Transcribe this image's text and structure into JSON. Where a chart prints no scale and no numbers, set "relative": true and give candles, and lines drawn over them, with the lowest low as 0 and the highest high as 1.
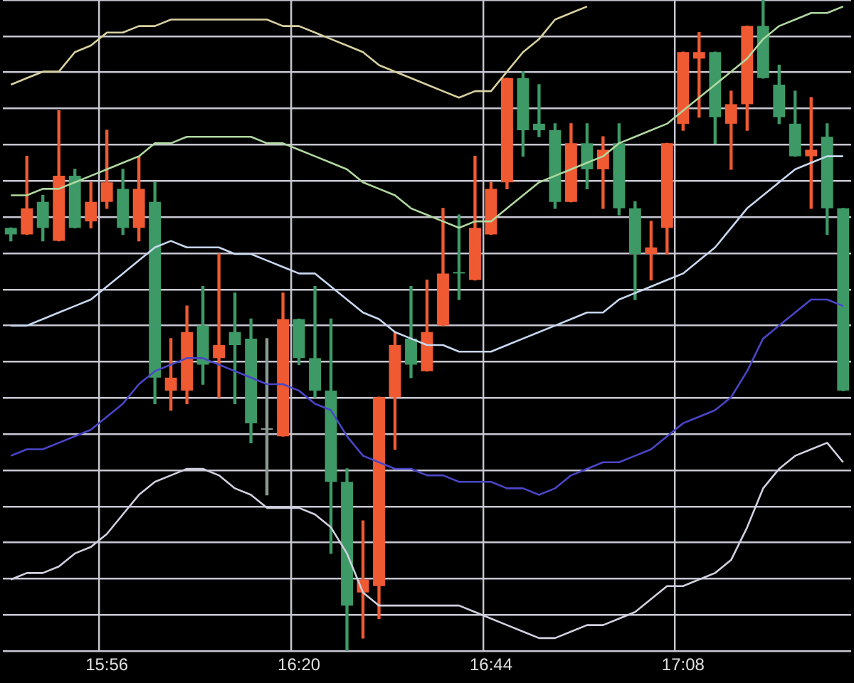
{
  "chart_data": {
    "type": "candlestick",
    "relative": true,
    "grid": true,
    "categories": [
      null,
      null,
      null,
      null,
      null,
      null,
      "15:56",
      null,
      null,
      null,
      null,
      null,
      null,
      null,
      null,
      null,
      null,
      null,
      "16:20",
      null,
      null,
      null,
      null,
      null,
      null,
      null,
      null,
      null,
      null,
      null,
      "16:44",
      null,
      null,
      null,
      null,
      null,
      null,
      null,
      null,
      null,
      null,
      null,
      "17:08",
      null,
      null,
      null,
      null,
      null,
      null,
      null,
      null,
      null,
      null
    ],
    "colors": [
      "#3d9a66",
      "#f05a32",
      "#3d9a66",
      "#f05a32",
      "#3d9a66",
      "#f05a32",
      "#f05a32",
      "#3d9a66",
      "#f05a32",
      "#3d9a66",
      "#f05a32",
      "#f05a32",
      "#3d9a66",
      "#f05a32",
      "#3d9a66",
      "#3d9a66",
      "#8a9a90",
      "#f05a32",
      "#3d9a66",
      "#3d9a66",
      "#3d9a66",
      "#3d9a66",
      "#f05a32",
      "#f05a32",
      "#f05a32",
      "#3d9a66",
      "#f05a32",
      "#f05a32",
      "#3d9a66",
      "#f05a32",
      "#f05a32",
      "#f05a32",
      "#3d9a66",
      "#3d9a66",
      "#3d9a66",
      "#f05a32",
      "#3d9a66",
      "#f05a32",
      "#3d9a66",
      "#3d9a66",
      "#f05a32",
      "#f05a32",
      "#f05a32",
      "#f05a32",
      "#3d9a66",
      "#f05a32",
      "#f05a32",
      "#3d9a66",
      "#3d9a66",
      "#3d9a66",
      "#f05a32",
      "#3d9a66",
      "#3d9a66"
    ],
    "ohlc": [
      [
        0.65,
        0.65,
        0.63,
        0.64
      ],
      [
        0.64,
        0.76,
        0.64,
        0.68
      ],
      [
        0.69,
        0.7,
        0.63,
        0.65
      ],
      [
        0.63,
        0.83,
        0.63,
        0.73
      ],
      [
        0.73,
        0.74,
        0.65,
        0.65
      ],
      [
        0.66,
        0.72,
        0.65,
        0.69
      ],
      [
        0.69,
        0.8,
        0.68,
        0.72
      ],
      [
        0.71,
        0.74,
        0.64,
        0.65
      ],
      [
        0.65,
        0.76,
        0.63,
        0.71
      ],
      [
        0.69,
        0.72,
        0.38,
        0.42
      ],
      [
        0.4,
        0.48,
        0.37,
        0.42
      ],
      [
        0.4,
        0.53,
        0.38,
        0.49
      ],
      [
        0.5,
        0.56,
        0.41,
        0.44
      ],
      [
        0.45,
        0.61,
        0.39,
        0.47
      ],
      [
        0.49,
        0.55,
        0.38,
        0.47
      ],
      [
        0.48,
        0.51,
        0.32,
        0.35
      ],
      [
        0.34,
        0.48,
        0.24,
        0.34
      ],
      [
        0.33,
        0.55,
        0.33,
        0.51
      ],
      [
        0.51,
        0.51,
        0.44,
        0.45
      ],
      [
        0.45,
        0.56,
        0.39,
        0.4
      ],
      [
        0.4,
        0.51,
        0.15,
        0.26
      ],
      [
        0.26,
        0.28,
        0,
        0.07
      ],
      [
        0.09,
        0.2,
        0.02,
        0.11
      ],
      [
        0.1,
        0.39,
        0.05,
        0.39
      ],
      [
        0.39,
        0.49,
        0.31,
        0.47
      ],
      [
        0.48,
        0.56,
        0.42,
        0.44
      ],
      [
        0.43,
        0.57,
        0.43,
        0.49
      ],
      [
        0.5,
        0.68,
        0.5,
        0.58
      ],
      [
        0.58,
        0.67,
        0.54,
        0.58
      ],
      [
        0.57,
        0.76,
        0.57,
        0.65
      ],
      [
        0.64,
        0.72,
        0.64,
        0.71
      ],
      [
        0.72,
        0.88,
        0.71,
        0.88
      ],
      [
        0.88,
        0.89,
        0.76,
        0.8
      ],
      [
        0.81,
        0.87,
        0.79,
        0.8
      ],
      [
        0.8,
        0.81,
        0.68,
        0.69
      ],
      [
        0.69,
        0.81,
        0.69,
        0.78
      ],
      [
        0.78,
        0.81,
        0.71,
        0.74
      ],
      [
        0.74,
        0.79,
        0.68,
        0.77
      ],
      [
        0.78,
        0.81,
        0.67,
        0.68
      ],
      [
        0.68,
        0.69,
        0.54,
        0.61
      ],
      [
        0.61,
        0.66,
        0.57,
        0.62
      ],
      [
        0.65,
        0.78,
        0.61,
        0.78
      ],
      [
        0.81,
        0.92,
        0.8,
        0.92
      ],
      [
        0.91,
        0.95,
        0.82,
        0.92
      ],
      [
        0.92,
        0.92,
        0.78,
        0.82
      ],
      [
        0.81,
        0.86,
        0.74,
        0.84
      ],
      [
        0.84,
        0.96,
        0.8,
        0.96
      ],
      [
        0.96,
        1,
        0.88,
        0.88
      ],
      [
        0.87,
        0.9,
        0.81,
        0.82
      ],
      [
        0.81,
        0.86,
        0.76,
        0.76
      ],
      [
        0.76,
        0.85,
        0.68,
        0.77
      ],
      [
        0.79,
        0.81,
        0.64,
        0.68
      ],
      [
        0.68,
        0.68,
        0.4,
        0.4
      ]
    ],
    "series": [
      {
        "type": "line",
        "color": "#d8d0a0",
        "values": [
          0.87,
          0.88,
          0.89,
          0.89,
          0.92,
          0.93,
          0.95,
          0.95,
          0.96,
          0.96,
          0.97,
          0.97,
          0.97,
          0.97,
          0.97,
          0.97,
          0.97,
          0.96,
          0.96,
          0.95,
          0.94,
          0.93,
          0.92,
          0.9,
          0.89,
          0.88,
          0.87,
          0.86,
          0.85,
          0.86,
          0.86,
          0.89,
          0.92,
          0.94,
          0.97,
          0.98,
          0.99,
          null,
          null,
          null,
          null,
          null,
          null,
          null,
          null,
          null,
          null,
          null,
          null,
          null,
          null,
          null,
          null
        ]
      },
      {
        "type": "line",
        "color": "#b0d8a0",
        "values": [
          0.7,
          0.7,
          0.71,
          0.71,
          0.72,
          0.73,
          0.74,
          0.75,
          0.76,
          0.78,
          0.78,
          0.79,
          0.79,
          0.79,
          0.79,
          0.79,
          0.78,
          0.78,
          0.77,
          0.76,
          0.75,
          0.74,
          0.72,
          0.71,
          0.7,
          0.68,
          0.67,
          0.66,
          0.65,
          0.66,
          0.66,
          0.68,
          0.7,
          0.72,
          0.73,
          0.74,
          0.75,
          0.76,
          0.78,
          0.79,
          0.8,
          0.81,
          0.83,
          0.85,
          0.87,
          0.89,
          0.91,
          0.94,
          0.96,
          0.97,
          0.98,
          0.98,
          0.99
        ]
      },
      {
        "type": "line",
        "color": "#c8d8f0",
        "values": [
          0.5,
          0.5,
          0.51,
          0.52,
          0.53,
          0.54,
          0.56,
          0.58,
          0.6,
          0.62,
          0.63,
          0.62,
          0.62,
          0.62,
          0.61,
          0.61,
          0.6,
          0.59,
          0.58,
          0.58,
          0.56,
          0.54,
          0.52,
          0.51,
          0.49,
          0.48,
          0.47,
          0.47,
          0.46,
          0.46,
          0.46,
          0.47,
          0.48,
          0.49,
          0.5,
          0.51,
          0.52,
          0.52,
          0.54,
          0.55,
          0.56,
          0.57,
          0.58,
          0.6,
          0.62,
          0.65,
          0.68,
          0.7,
          0.72,
          0.74,
          0.75,
          0.76,
          0.76
        ]
      },
      {
        "type": "line",
        "color": "#4a46c8",
        "values": [
          0.3,
          0.31,
          0.31,
          0.32,
          0.33,
          0.34,
          0.36,
          0.38,
          0.41,
          0.43,
          0.44,
          0.45,
          0.45,
          0.44,
          0.43,
          0.42,
          0.41,
          0.41,
          0.4,
          0.38,
          0.37,
          0.33,
          0.3,
          0.29,
          0.28,
          0.28,
          0.27,
          0.27,
          0.26,
          0.26,
          0.26,
          0.25,
          0.25,
          0.24,
          0.25,
          0.27,
          0.28,
          0.29,
          0.29,
          0.3,
          0.31,
          0.33,
          0.35,
          0.36,
          0.37,
          0.39,
          0.43,
          0.48,
          0.5,
          0.52,
          0.54,
          0.54,
          0.53
        ]
      },
      {
        "type": "line",
        "color": "#d0d0e0",
        "values": [
          0.11,
          0.12,
          0.12,
          0.13,
          0.15,
          0.16,
          0.18,
          0.21,
          0.24,
          0.26,
          0.27,
          0.28,
          0.28,
          0.27,
          0.25,
          0.24,
          0.22,
          0.22,
          0.22,
          0.21,
          0.19,
          0.15,
          0.09,
          0.07,
          0.07,
          0.07,
          0.07,
          0.07,
          0.07,
          0.06,
          0.05,
          0.04,
          0.03,
          0.02,
          0.02,
          0.03,
          0.04,
          0.04,
          0.05,
          0.06,
          0.08,
          0.1,
          0.1,
          0.11,
          0.12,
          0.14,
          0.19,
          0.25,
          0.28,
          0.3,
          0.31,
          0.32,
          0.29
        ]
      }
    ]
  }
}
